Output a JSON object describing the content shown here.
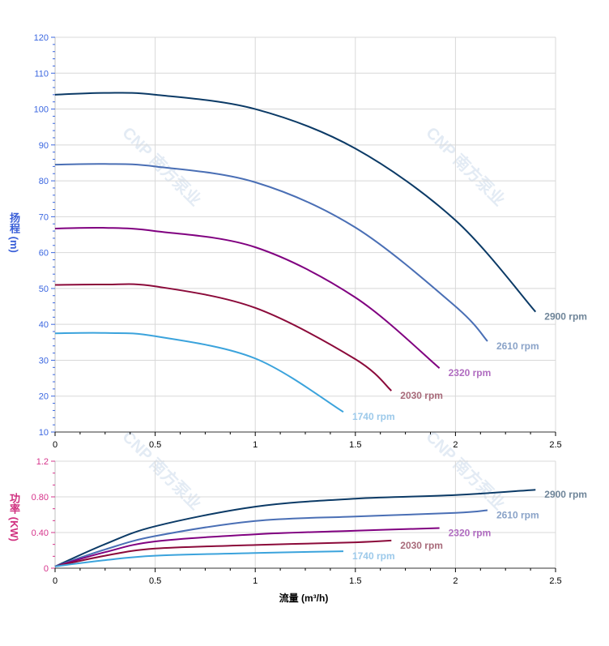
{
  "watermark": "CNP 南方泵业",
  "head_axis": {
    "label_chars": [
      "扬",
      "程"
    ],
    "unit": "(m)",
    "ylim": [
      10,
      120
    ],
    "ticks": [
      10,
      20,
      30,
      40,
      50,
      60,
      70,
      80,
      90,
      100,
      110,
      120
    ],
    "color": "#3a66e0"
  },
  "power_axis": {
    "label_chars": [
      "功",
      "率"
    ],
    "unit": "(KW)",
    "ylim": [
      0,
      1.2
    ],
    "ticks": [
      "0",
      "0.40",
      "0.80",
      "1.2"
    ],
    "tick_values": [
      0,
      0.4,
      0.8,
      1.2
    ],
    "color": "#d6338b"
  },
  "x_axis": {
    "label": "流量 (m³/h)",
    "xlim": [
      0,
      2.5
    ],
    "ticks": [
      "0",
      "0.5",
      "1",
      "1.5",
      "2",
      "2.5"
    ],
    "tick_values": [
      0,
      0.5,
      1,
      1.5,
      2,
      2.5
    ]
  },
  "chart_data": [
    {
      "type": "line",
      "title": "",
      "xlabel": "流量 (m³/h)",
      "ylabel": "扬程 (m)",
      "xlim": [
        0,
        2.5
      ],
      "ylim": [
        10,
        120
      ],
      "grid": true,
      "series": [
        {
          "name": "2900 rpm",
          "color": "#0b3a66",
          "label_color": "#6f8599",
          "x": [
            0,
            0.25,
            0.5,
            1,
            1.5,
            2,
            2.4
          ],
          "y": [
            104,
            104.5,
            104,
            100,
            89,
            69,
            43.5
          ]
        },
        {
          "name": "2610 rpm",
          "color": "#4a6fb5",
          "label_color": "#8aa3c8",
          "x": [
            0,
            0.25,
            0.5,
            1,
            1.5,
            2,
            2.16
          ],
          "y": [
            84.5,
            84.7,
            84,
            79.6,
            67,
            45,
            35.3
          ]
        },
        {
          "name": "2320 rpm",
          "color": "#800080",
          "label_color": "#b06cc0",
          "x": [
            0,
            0.25,
            0.5,
            1,
            1.5,
            1.92
          ],
          "y": [
            66.7,
            66.9,
            66,
            61.5,
            47.5,
            27.8
          ]
        },
        {
          "name": "2030 rpm",
          "color": "#8b0a3a",
          "label_color": "#a86a7a",
          "x": [
            0,
            0.25,
            0.5,
            1,
            1.5,
            1.68
          ],
          "y": [
            51,
            51.1,
            50.6,
            44.6,
            30.3,
            21.5
          ]
        },
        {
          "name": "1740 rpm",
          "color": "#3ba3dc",
          "label_color": "#9cc9ea",
          "x": [
            0,
            0.25,
            0.5,
            1,
            1.44
          ],
          "y": [
            37.5,
            37.6,
            36.7,
            30.5,
            15.6
          ]
        }
      ]
    },
    {
      "type": "line",
      "title": "",
      "xlabel": "流量 (m³/h)",
      "ylabel": "功率 (KW)",
      "xlim": [
        0,
        2.5
      ],
      "ylim": [
        0,
        1.2
      ],
      "grid": true,
      "series": [
        {
          "name": "2900 rpm",
          "color": "#0b3a66",
          "label_color": "#6f8599",
          "x": [
            0,
            0.25,
            0.5,
            1,
            1.5,
            2,
            2.4
          ],
          "y": [
            0.02,
            0.27,
            0.47,
            0.69,
            0.78,
            0.82,
            0.88
          ]
        },
        {
          "name": "2610 rpm",
          "color": "#4a6fb5",
          "label_color": "#8aa3c8",
          "x": [
            0,
            0.25,
            0.5,
            1,
            1.5,
            2,
            2.16
          ],
          "y": [
            0.02,
            0.21,
            0.36,
            0.53,
            0.58,
            0.62,
            0.65
          ]
        },
        {
          "name": "2320 rpm",
          "color": "#800080",
          "label_color": "#b06cc0",
          "x": [
            0,
            0.25,
            0.5,
            1,
            1.5,
            1.92
          ],
          "y": [
            0.02,
            0.18,
            0.3,
            0.38,
            0.42,
            0.45
          ]
        },
        {
          "name": "2030 rpm",
          "color": "#8b0a3a",
          "label_color": "#a86a7a",
          "x": [
            0,
            0.25,
            0.5,
            1,
            1.5,
            1.68
          ],
          "y": [
            0.02,
            0.14,
            0.22,
            0.26,
            0.29,
            0.31
          ]
        },
        {
          "name": "1740 rpm",
          "color": "#3ba3dc",
          "label_color": "#9cc9ea",
          "x": [
            0,
            0.25,
            0.5,
            1,
            1.44
          ],
          "y": [
            0.02,
            0.09,
            0.14,
            0.17,
            0.19
          ]
        }
      ]
    }
  ]
}
